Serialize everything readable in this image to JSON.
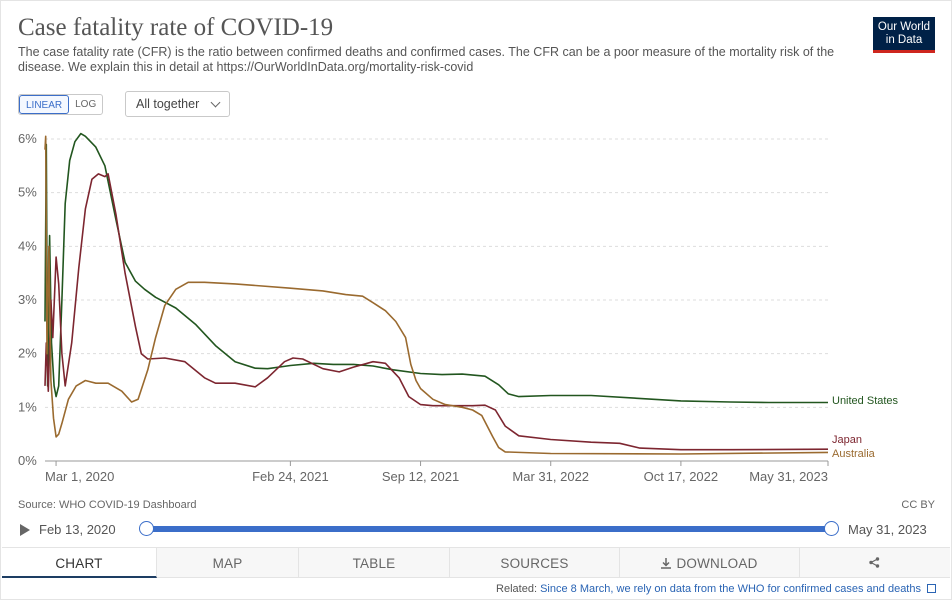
{
  "header": {
    "title": "Case fatality rate of COVID-19",
    "subtitle": "The case fatality rate (CFR) is the ratio between confirmed deaths and confirmed cases. The CFR can be a poor measure of the mortality risk of the disease. We explain this in detail at https://OurWorldInData.org/mortality-risk-covid",
    "logo": "Our World in Data"
  },
  "controls": {
    "linear_label": "LINEAR",
    "log_label": "LOG",
    "select_value": "All together"
  },
  "chart_data": {
    "type": "line",
    "yunit": "%",
    "ylim": [
      0,
      6
    ],
    "yticks": [
      "0%",
      "1%",
      "2%",
      "3%",
      "4%",
      "5%",
      "6%"
    ],
    "xticks": [
      "Mar 1, 2020",
      "Feb 24, 2021",
      "Sep 12, 2021",
      "Mar 31, 2022",
      "Oct 17, 2022",
      "May 31, 2023"
    ],
    "xlim": [
      "2020-02-13",
      "2023-05-31"
    ],
    "grid": "horizontal dashed",
    "legend": "end-of-line labels",
    "series": [
      {
        "name": "United States",
        "color": "#22561f",
        "points": [
          [
            "2020-02-13",
            2.6
          ],
          [
            "2020-02-15",
            5.9
          ],
          [
            "2020-02-17",
            1.4
          ],
          [
            "2020-02-20",
            4.2
          ],
          [
            "2020-02-23",
            2.2
          ],
          [
            "2020-02-27",
            1.4
          ],
          [
            "2020-03-01",
            1.2
          ],
          [
            "2020-03-05",
            1.4
          ],
          [
            "2020-03-10",
            3.0
          ],
          [
            "2020-03-15",
            4.8
          ],
          [
            "2020-03-22",
            5.6
          ],
          [
            "2020-03-30",
            5.95
          ],
          [
            "2020-04-08",
            6.1
          ],
          [
            "2020-04-15",
            6.05
          ],
          [
            "2020-05-01",
            5.85
          ],
          [
            "2020-05-15",
            5.5
          ],
          [
            "2020-06-01",
            4.5
          ],
          [
            "2020-06-15",
            3.7
          ],
          [
            "2020-07-01",
            3.35
          ],
          [
            "2020-07-15",
            3.2
          ],
          [
            "2020-08-01",
            3.05
          ],
          [
            "2020-09-01",
            2.85
          ],
          [
            "2020-10-01",
            2.55
          ],
          [
            "2020-11-01",
            2.15
          ],
          [
            "2020-12-01",
            1.85
          ],
          [
            "2021-01-01",
            1.73
          ],
          [
            "2021-01-20",
            1.72
          ],
          [
            "2021-02-24",
            1.78
          ],
          [
            "2021-04-01",
            1.82
          ],
          [
            "2021-05-01",
            1.8
          ],
          [
            "2021-06-01",
            1.8
          ],
          [
            "2021-07-01",
            1.77
          ],
          [
            "2021-08-01",
            1.7
          ],
          [
            "2021-09-12",
            1.63
          ],
          [
            "2021-10-15",
            1.61
          ],
          [
            "2021-11-15",
            1.62
          ],
          [
            "2021-12-20",
            1.58
          ],
          [
            "2022-01-10",
            1.42
          ],
          [
            "2022-01-25",
            1.25
          ],
          [
            "2022-02-10",
            1.2
          ],
          [
            "2022-03-31",
            1.22
          ],
          [
            "2022-06-01",
            1.22
          ],
          [
            "2022-10-17",
            1.12
          ],
          [
            "2023-01-01",
            1.1
          ],
          [
            "2023-03-01",
            1.09
          ],
          [
            "2023-05-31",
            1.09
          ]
        ]
      },
      {
        "name": "Japan",
        "color": "#7d2630",
        "points": [
          [
            "2020-02-13",
            1.4
          ],
          [
            "2020-02-15",
            2.2
          ],
          [
            "2020-02-18",
            1.3
          ],
          [
            "2020-02-22",
            3.0
          ],
          [
            "2020-02-25",
            2.3
          ],
          [
            "2020-03-01",
            3.8
          ],
          [
            "2020-03-05",
            3.3
          ],
          [
            "2020-03-10",
            2.0
          ],
          [
            "2020-03-15",
            1.4
          ],
          [
            "2020-03-25",
            2.2
          ],
          [
            "2020-04-05",
            3.6
          ],
          [
            "2020-04-15",
            4.7
          ],
          [
            "2020-04-25",
            5.25
          ],
          [
            "2020-05-05",
            5.35
          ],
          [
            "2020-05-15",
            5.3
          ],
          [
            "2020-05-20",
            5.35
          ],
          [
            "2020-06-01",
            4.6
          ],
          [
            "2020-06-15",
            3.5
          ],
          [
            "2020-07-01",
            2.5
          ],
          [
            "2020-07-10",
            2.0
          ],
          [
            "2020-07-20",
            1.9
          ],
          [
            "2020-08-15",
            1.92
          ],
          [
            "2020-09-15",
            1.85
          ],
          [
            "2020-10-15",
            1.55
          ],
          [
            "2020-11-01",
            1.45
          ],
          [
            "2020-12-01",
            1.45
          ],
          [
            "2021-01-01",
            1.38
          ],
          [
            "2021-01-20",
            1.55
          ],
          [
            "2021-02-15",
            1.85
          ],
          [
            "2021-02-28",
            1.92
          ],
          [
            "2021-03-15",
            1.9
          ],
          [
            "2021-04-15",
            1.72
          ],
          [
            "2021-05-10",
            1.66
          ],
          [
            "2021-06-01",
            1.75
          ],
          [
            "2021-07-01",
            1.85
          ],
          [
            "2021-07-20",
            1.82
          ],
          [
            "2021-08-10",
            1.55
          ],
          [
            "2021-08-25",
            1.2
          ],
          [
            "2021-09-12",
            1.05
          ],
          [
            "2021-10-01",
            1.03
          ],
          [
            "2021-11-01",
            1.03
          ],
          [
            "2021-12-01",
            1.03
          ],
          [
            "2021-12-20",
            1.04
          ],
          [
            "2022-01-05",
            0.95
          ],
          [
            "2022-01-20",
            0.65
          ],
          [
            "2022-02-10",
            0.47
          ],
          [
            "2022-03-31",
            0.4
          ],
          [
            "2022-06-01",
            0.35
          ],
          [
            "2022-07-15",
            0.33
          ],
          [
            "2022-08-15",
            0.24
          ],
          [
            "2022-10-17",
            0.21
          ],
          [
            "2023-01-01",
            0.21
          ],
          [
            "2023-05-31",
            0.22
          ]
        ]
      },
      {
        "name": "Australia",
        "color": "#9a6a2f",
        "points": [
          [
            "2020-02-13",
            5.8
          ],
          [
            "2020-02-14",
            6.05
          ],
          [
            "2020-02-16",
            2.0
          ],
          [
            "2020-02-19",
            4.0
          ],
          [
            "2020-02-22",
            1.5
          ],
          [
            "2020-02-26",
            0.8
          ],
          [
            "2020-03-01",
            0.45
          ],
          [
            "2020-03-05",
            0.5
          ],
          [
            "2020-03-10",
            0.7
          ],
          [
            "2020-03-20",
            1.15
          ],
          [
            "2020-04-01",
            1.4
          ],
          [
            "2020-04-15",
            1.5
          ],
          [
            "2020-05-01",
            1.45
          ],
          [
            "2020-05-20",
            1.45
          ],
          [
            "2020-06-10",
            1.3
          ],
          [
            "2020-06-25",
            1.1
          ],
          [
            "2020-07-05",
            1.15
          ],
          [
            "2020-07-20",
            1.7
          ],
          [
            "2020-08-01",
            2.3
          ],
          [
            "2020-08-15",
            2.9
          ],
          [
            "2020-09-01",
            3.2
          ],
          [
            "2020-09-20",
            3.33
          ],
          [
            "2020-10-15",
            3.33
          ],
          [
            "2020-12-01",
            3.3
          ],
          [
            "2021-02-24",
            3.22
          ],
          [
            "2021-04-15",
            3.17
          ],
          [
            "2021-05-20",
            3.1
          ],
          [
            "2021-06-15",
            3.07
          ],
          [
            "2021-07-01",
            2.95
          ],
          [
            "2021-07-20",
            2.8
          ],
          [
            "2021-08-05",
            2.6
          ],
          [
            "2021-08-20",
            2.3
          ],
          [
            "2021-08-28",
            1.8
          ],
          [
            "2021-09-05",
            1.5
          ],
          [
            "2021-09-12",
            1.35
          ],
          [
            "2021-10-01",
            1.15
          ],
          [
            "2021-10-20",
            1.05
          ],
          [
            "2021-11-15",
            1.0
          ],
          [
            "2021-12-01",
            0.95
          ],
          [
            "2021-12-15",
            0.85
          ],
          [
            "2022-01-01",
            0.45
          ],
          [
            "2022-01-10",
            0.25
          ],
          [
            "2022-01-20",
            0.17
          ],
          [
            "2022-03-31",
            0.14
          ],
          [
            "2022-10-17",
            0.13
          ],
          [
            "2023-05-31",
            0.16
          ]
        ]
      }
    ]
  },
  "footer": {
    "source": "Source: WHO COVID-19 Dashboard",
    "license": "CC BY",
    "timeline_start": "Feb 13, 2020",
    "timeline_end": "May 31, 2023",
    "tabs": [
      "CHART",
      "MAP",
      "TABLE",
      "SOURCES",
      "DOWNLOAD"
    ],
    "related_prefix": "Related:",
    "related_link": "Since 8 March, we rely on data from the WHO for confirmed cases and deaths"
  }
}
